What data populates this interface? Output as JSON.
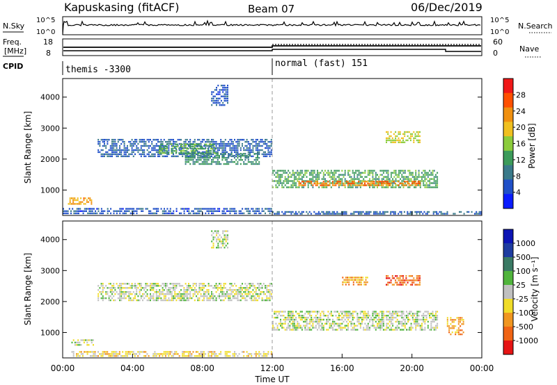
{
  "header": {
    "station": "Kapuskasing (fitACF)",
    "beam": "Beam 07",
    "date": "06/Dec/2019"
  },
  "strip_labels": {
    "nsky": "N.Sky",
    "nsearch": "N.Search",
    "nsky_ticks": [
      "10^5",
      "10^0"
    ],
    "nsearch_ticks": [
      "10^5",
      "10^0"
    ],
    "freq_line1": "Freq.",
    "freq_line2": "[MHz]",
    "freq_ticks": [
      "18",
      "8"
    ],
    "nave": "Nave",
    "nave_ticks": [
      "60",
      "0"
    ],
    "cpid": "CPID",
    "modes": [
      {
        "label": "themis -3300",
        "start_hour": 0
      },
      {
        "label": "normal (fast) 151",
        "start_hour": 12
      }
    ]
  },
  "colors": {
    "power": [
      "#0a1cff",
      "#2050c8",
      "#3a7a8a",
      "#3c9b5a",
      "#8ccc3c",
      "#f0c020",
      "#f09010",
      "#ff5000",
      "#f01818"
    ],
    "velocity": [
      "#0c14b4",
      "#1e3ca0",
      "#3a7a64",
      "#50b43c",
      "#c0c0c0",
      "#f0dc28",
      "#f09620",
      "#f06414",
      "#e61414"
    ],
    "ground": "#c0c0c0"
  },
  "chart_data": [
    {
      "type": "heatmap",
      "name": "power",
      "ylabel": "Slant Range [km]",
      "ylim": [
        180,
        4600
      ],
      "xlim": [
        0,
        24
      ],
      "yticks": [
        "1000",
        "2000",
        "3000",
        "4000"
      ],
      "colorbar_label": "Power [dB]",
      "colorbar_ticks": [
        "4",
        "8",
        "12",
        "16",
        "20",
        "24",
        "28"
      ],
      "scale_range": [
        0,
        32
      ],
      "blobs": [
        {
          "t0": 0.0,
          "t1": 12.0,
          "r0": 200,
          "r1": 420,
          "v": 6
        },
        {
          "t0": 0.3,
          "t1": 1.7,
          "r0": 520,
          "r1": 760,
          "v": 22
        },
        {
          "t0": 2.0,
          "t1": 12.0,
          "r0": 2050,
          "r1": 2650,
          "v": 7
        },
        {
          "t0": 5.5,
          "t1": 8.8,
          "r0": 2150,
          "r1": 2500,
          "v": 13
        },
        {
          "t0": 7.0,
          "t1": 11.3,
          "r0": 1800,
          "r1": 2200,
          "v": 11
        },
        {
          "t0": 8.5,
          "t1": 9.5,
          "r0": 3700,
          "r1": 4400,
          "v": 6
        },
        {
          "t0": 12.0,
          "t1": 21.5,
          "r0": 1050,
          "r1": 1650,
          "v": 13
        },
        {
          "t0": 13.5,
          "t1": 20.5,
          "r0": 1120,
          "r1": 1300,
          "v": 24
        },
        {
          "t0": 18.5,
          "t1": 20.5,
          "r0": 2500,
          "r1": 2900,
          "v": 18
        },
        {
          "t0": 12.0,
          "t1": 24.0,
          "r0": 200,
          "r1": 320,
          "v": 7
        }
      ]
    },
    {
      "type": "heatmap",
      "name": "velocity",
      "ylabel": "Slant Range [km]",
      "ylim": [
        180,
        4600
      ],
      "xlim": [
        0,
        24
      ],
      "yticks": [
        "1000",
        "2000",
        "3000",
        "4000"
      ],
      "xticks": [
        "00:00",
        "04:00",
        "08:00",
        "12:00",
        "16:00",
        "20:00",
        "00:00"
      ],
      "xlabel": "Time UT",
      "colorbar_label": "Velocity [m s⁻¹]",
      "colorbar_ticks": [
        "1000",
        "500",
        "100",
        "25",
        "-25",
        "-100",
        "-500",
        "-1000"
      ],
      "blobs": [
        {
          "t0": 0.5,
          "t1": 12.0,
          "r0": 200,
          "r1": 400,
          "v": 5
        },
        {
          "t0": 0.5,
          "t1": 1.8,
          "r0": 550,
          "r1": 780,
          "v": 4
        },
        {
          "t0": 2.0,
          "t1": 12.0,
          "r0": 2000,
          "r1": 2600,
          "v": 4
        },
        {
          "t0": 8.5,
          "t1": 9.5,
          "r0": 3700,
          "r1": 4300,
          "v": 4
        },
        {
          "t0": 12.0,
          "t1": 21.5,
          "r0": 1050,
          "r1": 1700,
          "v": 4
        },
        {
          "t0": 18.5,
          "t1": 20.5,
          "r0": 2500,
          "r1": 2850,
          "v": 7
        },
        {
          "t0": 16.0,
          "t1": 17.5,
          "r0": 2500,
          "r1": 2800,
          "v": 6
        },
        {
          "t0": 22.0,
          "t1": 23.0,
          "r0": 900,
          "r1": 1500,
          "v": 6
        }
      ]
    }
  ]
}
